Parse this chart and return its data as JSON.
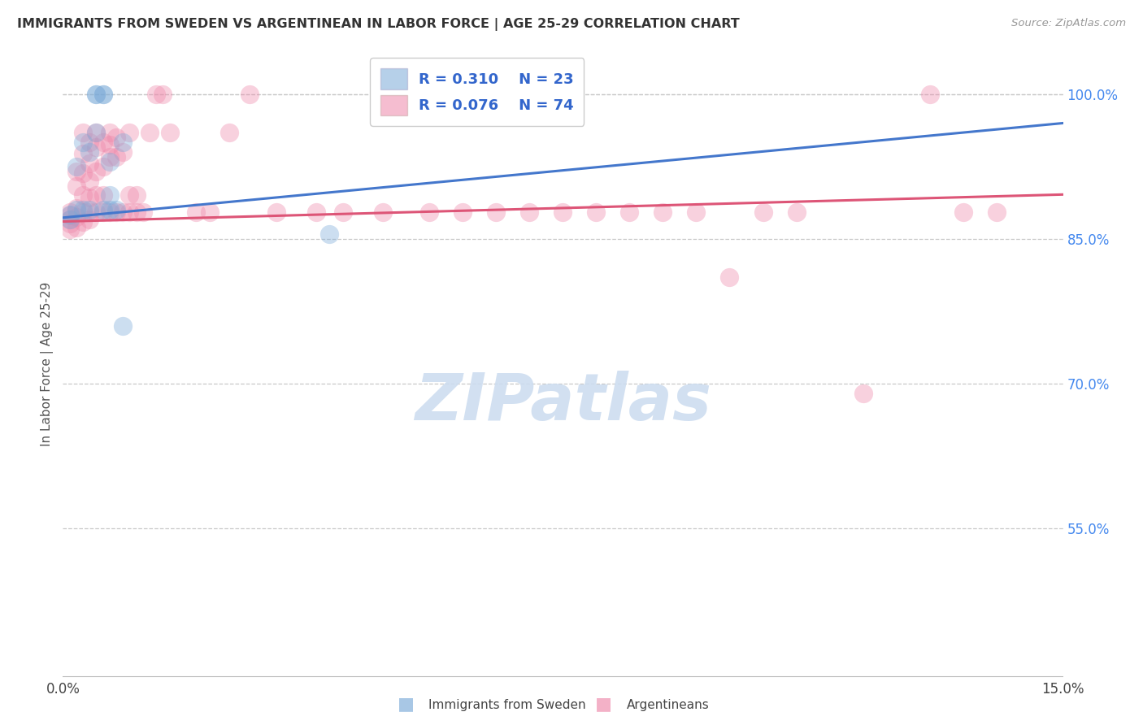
{
  "title": "IMMIGRANTS FROM SWEDEN VS ARGENTINEAN IN LABOR FORCE | AGE 25-29 CORRELATION CHART",
  "source": "Source: ZipAtlas.com",
  "ylabel": "In Labor Force | Age 25-29",
  "xlim": [
    0.0,
    0.15
  ],
  "ylim": [
    0.395,
    1.045
  ],
  "yticks": [
    0.55,
    0.7,
    0.85,
    1.0
  ],
  "ytick_labels": [
    "55.0%",
    "70.0%",
    "85.0%",
    "100.0%"
  ],
  "xtick_labels": [
    "0.0%",
    "15.0%"
  ],
  "grid_color": "#c8c8c8",
  "background_color": "#ffffff",
  "sweden_color": "#7aaad8",
  "argentina_color": "#ee88aa",
  "sweden_line_color": "#4477cc",
  "argentina_line_color": "#dd5577",
  "legend_text_color": "#3366cc",
  "sweden_R": 0.31,
  "sweden_N": 23,
  "argentina_R": 0.076,
  "argentina_N": 74,
  "watermark_text": "ZIPatlas",
  "watermark_color": "#cdddf0",
  "sweden_x": [
    0.001,
    0.001,
    0.002,
    0.002,
    0.003,
    0.003,
    0.004,
    0.004,
    0.005,
    0.005,
    0.005,
    0.006,
    0.006,
    0.006,
    0.007,
    0.007,
    0.007,
    0.008,
    0.009,
    0.009,
    0.04,
    0.065,
    0.075
  ],
  "sweden_y": [
    0.875,
    0.87,
    0.88,
    0.925,
    0.88,
    0.95,
    0.88,
    0.94,
    0.96,
    1.0,
    1.0,
    1.0,
    1.0,
    0.88,
    0.93,
    0.895,
    0.88,
    0.88,
    0.95,
    0.76,
    0.855,
    1.0,
    1.0
  ],
  "argentina_x": [
    0.001,
    0.001,
    0.001,
    0.001,
    0.001,
    0.002,
    0.002,
    0.002,
    0.002,
    0.002,
    0.003,
    0.003,
    0.003,
    0.003,
    0.003,
    0.003,
    0.004,
    0.004,
    0.004,
    0.004,
    0.004,
    0.004,
    0.005,
    0.005,
    0.005,
    0.005,
    0.005,
    0.006,
    0.006,
    0.006,
    0.006,
    0.007,
    0.007,
    0.007,
    0.007,
    0.008,
    0.008,
    0.008,
    0.009,
    0.009,
    0.01,
    0.01,
    0.01,
    0.011,
    0.011,
    0.012,
    0.013,
    0.014,
    0.015,
    0.016,
    0.02,
    0.022,
    0.025,
    0.028,
    0.032,
    0.038,
    0.042,
    0.048,
    0.055,
    0.06,
    0.065,
    0.07,
    0.075,
    0.08,
    0.085,
    0.09,
    0.095,
    0.1,
    0.105,
    0.11,
    0.12,
    0.13,
    0.135,
    0.14
  ],
  "argentina_y": [
    0.878,
    0.874,
    0.87,
    0.866,
    0.86,
    0.92,
    0.905,
    0.882,
    0.873,
    0.862,
    0.96,
    0.938,
    0.918,
    0.895,
    0.878,
    0.868,
    0.95,
    0.928,
    0.91,
    0.893,
    0.878,
    0.87,
    0.96,
    0.945,
    0.92,
    0.895,
    0.878,
    0.95,
    0.925,
    0.895,
    0.878,
    0.96,
    0.948,
    0.935,
    0.878,
    0.955,
    0.935,
    0.878,
    0.94,
    0.878,
    0.96,
    0.895,
    0.878,
    0.895,
    0.878,
    0.878,
    0.96,
    1.0,
    1.0,
    0.96,
    0.878,
    0.878,
    0.96,
    1.0,
    0.878,
    0.878,
    0.878,
    0.878,
    0.878,
    0.878,
    0.878,
    0.878,
    0.878,
    0.878,
    0.878,
    0.878,
    0.878,
    0.81,
    0.878,
    0.878,
    0.69,
    1.0,
    0.878,
    0.878
  ]
}
